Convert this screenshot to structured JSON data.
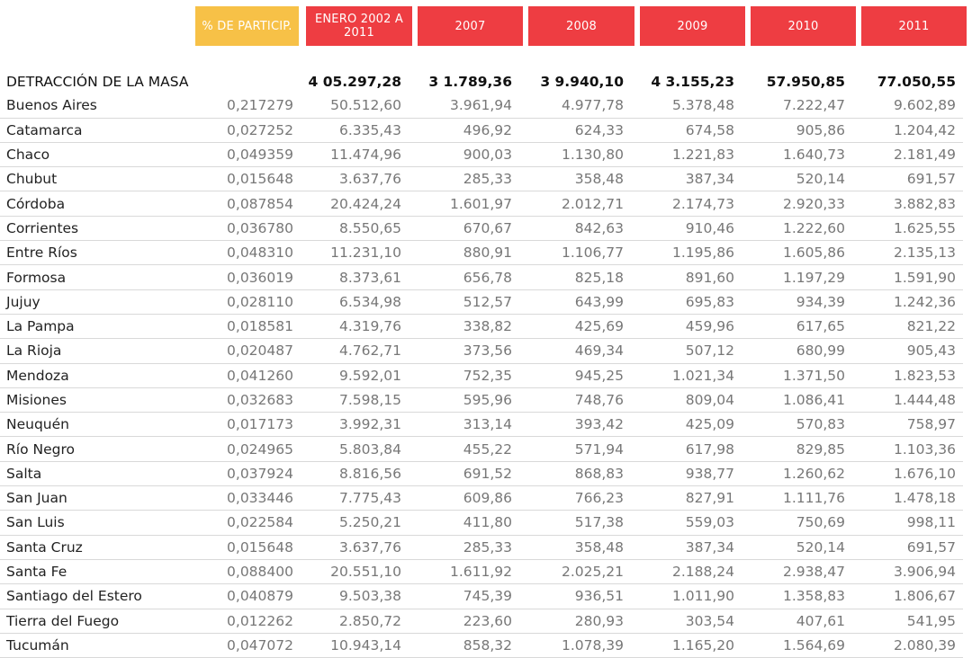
{
  "headers": [
    "% DE PARTICIP.",
    "ENERO 2002 A 2011",
    "2007",
    "2008",
    "2009",
    "2010",
    "2011"
  ],
  "total": {
    "label": "DETRACCIÓN DE LA MASA",
    "values": [
      "",
      "4 05.297,28",
      "3 1.789,36",
      "3 9.940,10",
      "4 3.155,23",
      "57.950,85",
      "77.050,55"
    ]
  },
  "rows": [
    {
      "name": "Buenos Aires",
      "values": [
        "0,217279",
        "50.512,60",
        "3.961,94",
        "4.977,78",
        "5.378,48",
        "7.222,47",
        "9.602,89"
      ]
    },
    {
      "name": "Catamarca",
      "values": [
        "0,027252",
        "6.335,43",
        "496,92",
        "624,33",
        "674,58",
        "905,86",
        "1.204,42"
      ]
    },
    {
      "name": "Chaco",
      "values": [
        "0,049359",
        "11.474,96",
        "900,03",
        "1.130,80",
        "1.221,83",
        "1.640,73",
        "2.181,49"
      ]
    },
    {
      "name": "Chubut",
      "values": [
        "0,015648",
        "3.637,76",
        "285,33",
        "358,48",
        "387,34",
        "520,14",
        "691,57"
      ]
    },
    {
      "name": "Córdoba",
      "values": [
        "0,087854",
        "20.424,24",
        "1.601,97",
        "2.012,71",
        "2.174,73",
        "2.920,33",
        "3.882,83"
      ]
    },
    {
      "name": "Corrientes",
      "values": [
        "0,036780",
        "8.550,65",
        "670,67",
        "842,63",
        "910,46",
        "1.222,60",
        "1.625,55"
      ]
    },
    {
      "name": "Entre Ríos",
      "values": [
        "0,048310",
        "11.231,10",
        "880,91",
        "1.106,77",
        "1.195,86",
        "1.605,86",
        "2.135,13"
      ]
    },
    {
      "name": "Formosa",
      "values": [
        "0,036019",
        "8.373,61",
        "656,78",
        "825,18",
        "891,60",
        "1.197,29",
        "1.591,90"
      ]
    },
    {
      "name": "Jujuy",
      "values": [
        "0,028110",
        "6.534,98",
        "512,57",
        "643,99",
        "695,83",
        "934,39",
        "1.242,36"
      ]
    },
    {
      "name": "La Pampa",
      "values": [
        "0,018581",
        "4.319,76",
        "338,82",
        "425,69",
        "459,96",
        "617,65",
        "821,22"
      ]
    },
    {
      "name": "La Rioja",
      "values": [
        "0,020487",
        "4.762,71",
        "373,56",
        "469,34",
        "507,12",
        "680,99",
        "905,43"
      ]
    },
    {
      "name": "Mendoza",
      "values": [
        "0,041260",
        "9.592,01",
        "752,35",
        "945,25",
        "1.021,34",
        "1.371,50",
        "1.823,53"
      ]
    },
    {
      "name": "Misiones",
      "values": [
        "0,032683",
        "7.598,15",
        "595,96",
        "748,76",
        "809,04",
        "1.086,41",
        "1.444,48"
      ]
    },
    {
      "name": "Neuquén",
      "values": [
        "0,017173",
        "3.992,31",
        "313,14",
        "393,42",
        "425,09",
        "570,83",
        "758,97"
      ]
    },
    {
      "name": "Río Negro",
      "values": [
        "0,024965",
        "5.803,84",
        "455,22",
        "571,94",
        "617,98",
        "829,85",
        "1.103,36"
      ]
    },
    {
      "name": "Salta",
      "values": [
        "0,037924",
        "8.816,56",
        "691,52",
        "868,83",
        "938,77",
        "1.260,62",
        "1.676,10"
      ]
    },
    {
      "name": "San Juan",
      "values": [
        "0,033446",
        "7.775,43",
        "609,86",
        "766,23",
        "827,91",
        "1.111,76",
        "1.478,18"
      ]
    },
    {
      "name": "San Luis",
      "values": [
        "0,022584",
        "5.250,21",
        "411,80",
        "517,38",
        "559,03",
        "750,69",
        "998,11"
      ]
    },
    {
      "name": "Santa Cruz",
      "values": [
        "0,015648",
        "3.637,76",
        "285,33",
        "358,48",
        "387,34",
        "520,14",
        "691,57"
      ]
    },
    {
      "name": "Santa Fe",
      "values": [
        "0,088400",
        "20.551,10",
        "1.611,92",
        "2.025,21",
        "2.188,24",
        "2.938,47",
        "3.906,94"
      ]
    },
    {
      "name": "Santiago del Estero",
      "values": [
        "0,040879",
        "9.503,38",
        "745,39",
        "936,51",
        "1.011,90",
        "1.358,83",
        "1.806,67"
      ]
    },
    {
      "name": "Tierra del Fuego",
      "values": [
        "0,012262",
        "2.850,72",
        "223,60",
        "280,93",
        "303,54",
        "407,61",
        "541,95"
      ]
    },
    {
      "name": "Tucumán",
      "values": [
        "0,047072",
        "10.943,14",
        "858,32",
        "1.078,39",
        "1.165,20",
        "1.564,69",
        "2.080,39"
      ]
    }
  ],
  "colors": {
    "header_yellow": "#f7c147",
    "header_red": "#ee3d42"
  }
}
